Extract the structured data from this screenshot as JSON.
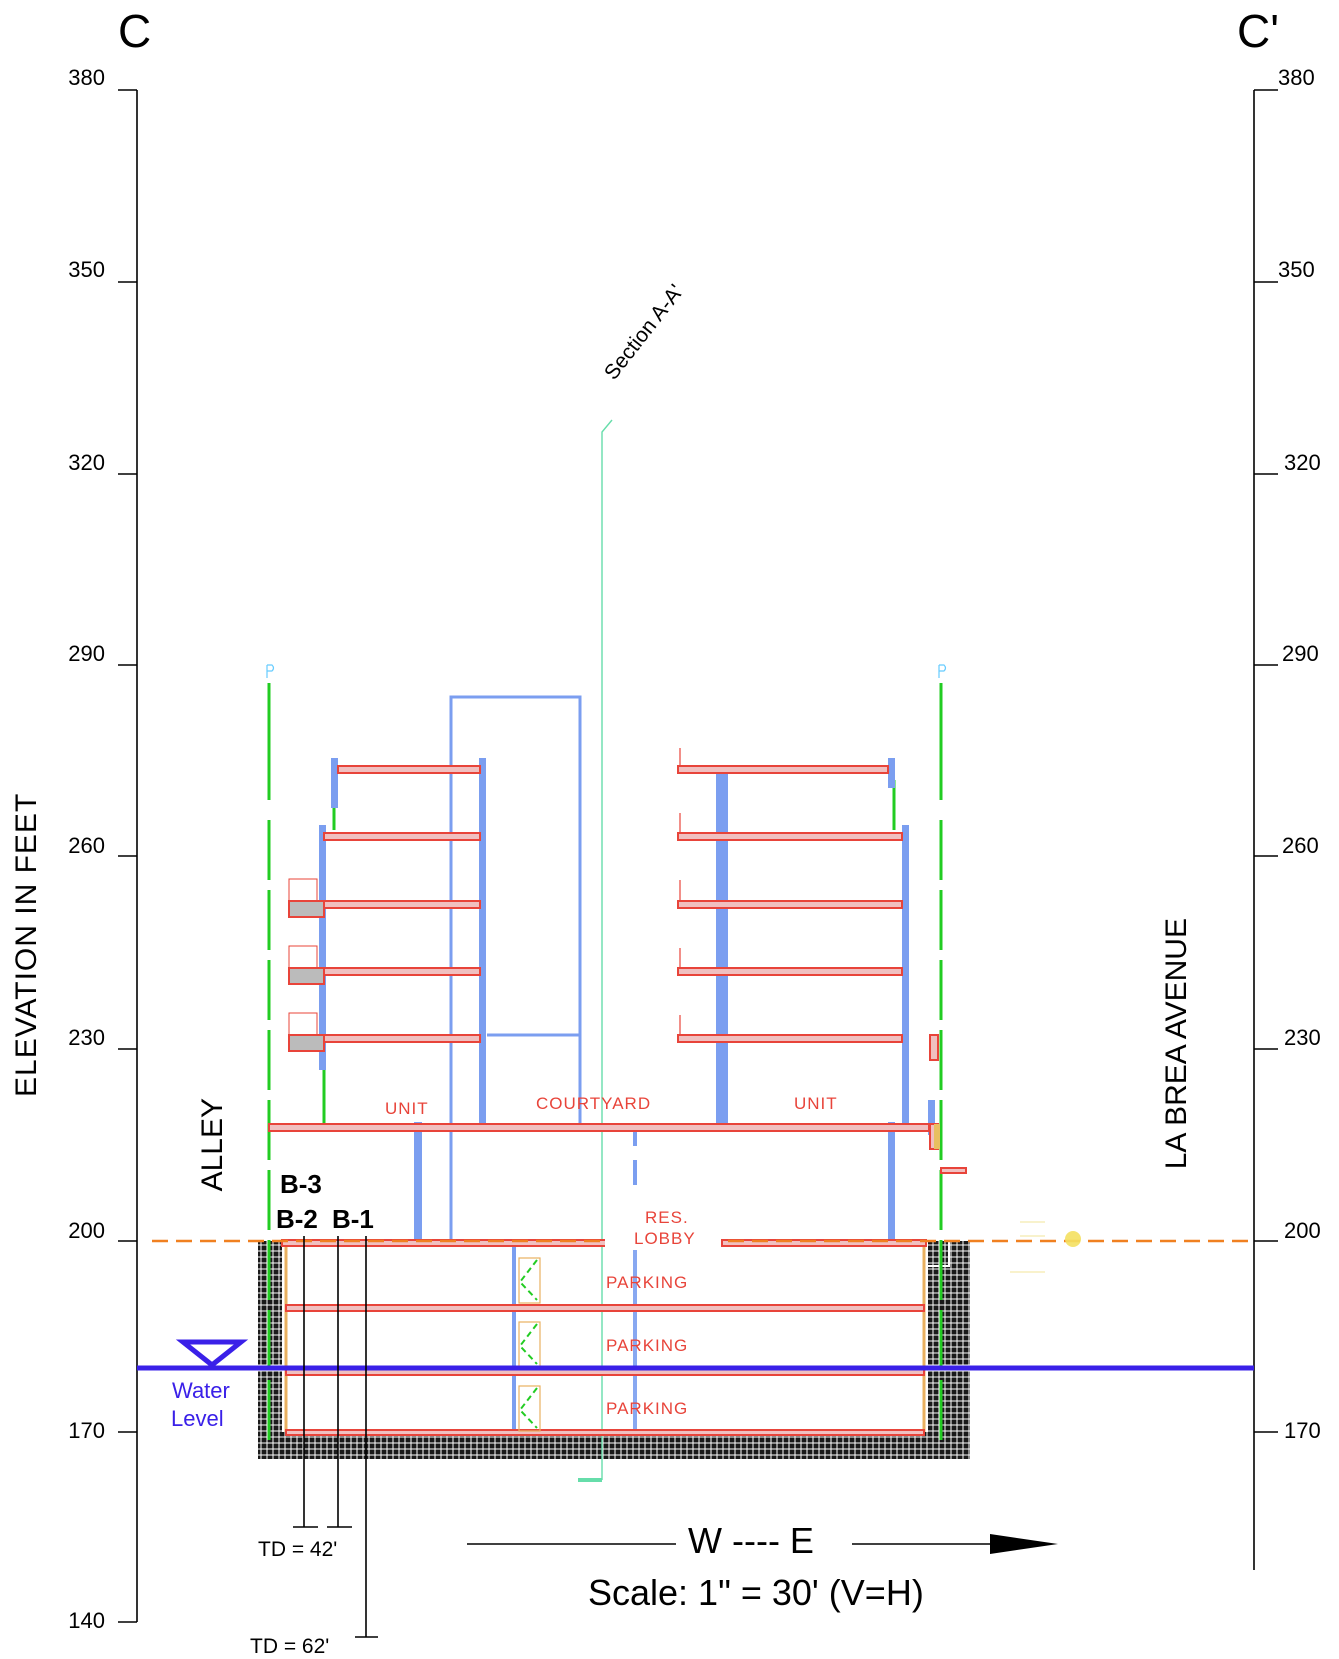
{
  "section": {
    "left_label": "C",
    "right_label": "C'",
    "cut_label": "Section A-A'"
  },
  "axis": {
    "title": "ELEVATION IN FEET",
    "ticks": [
      "380",
      "350",
      "320",
      "290",
      "260",
      "230",
      "200",
      "170",
      "140"
    ],
    "right_ticks": [
      "380",
      "350",
      "320",
      "290",
      "260",
      "230",
      "200",
      "170"
    ]
  },
  "sides": {
    "west": "ALLEY",
    "east": "LA BREA AVENUE"
  },
  "rooms": {
    "unit_left": "UNIT",
    "courtyard": "COURTYARD",
    "unit_right": "UNIT",
    "lobby_line1": "RES.",
    "lobby_line2": "LOBBY",
    "parking_1": "PARKING",
    "parking_2": "PARKING",
    "parking_3": "PARKING"
  },
  "borings": {
    "b3": "B-3",
    "b2": "B-2",
    "b1": "B-1",
    "td_short": "TD = 42'",
    "td_long": "TD = 62'"
  },
  "water": {
    "line1": "Water",
    "line2": "Level"
  },
  "footer": {
    "direction": "W ---- E",
    "scale": "Scale: 1\" = 30' (V=H)"
  },
  "colors": {
    "slab": "#e8443a",
    "column": "#7b9ef0",
    "green": "#22cc22",
    "water": "#3a20e8",
    "grade": "#f08020"
  }
}
